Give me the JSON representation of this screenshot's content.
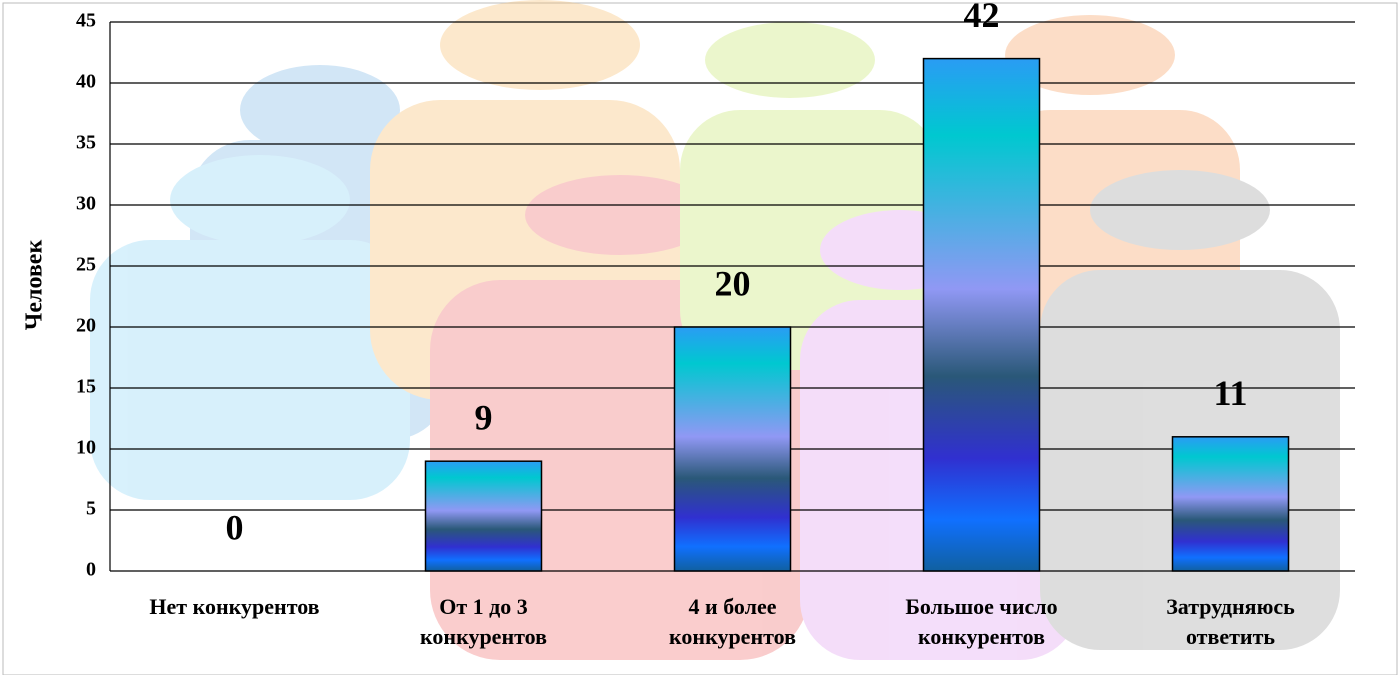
{
  "chart_data": {
    "type": "bar",
    "y_label": "Человек",
    "categories": [
      "Нет конкурентов",
      "От 1 до 3\nконкурентов",
      "4 и более\nконкурентов",
      "Большое число\nконкурентов",
      "Затрудняюсь\nответить"
    ],
    "values": [
      0,
      9,
      20,
      42,
      11
    ],
    "ylim": [
      0,
      45
    ],
    "yticks": [
      0,
      5,
      10,
      15,
      20,
      25,
      30,
      35,
      40,
      45
    ],
    "grid": true
  }
}
